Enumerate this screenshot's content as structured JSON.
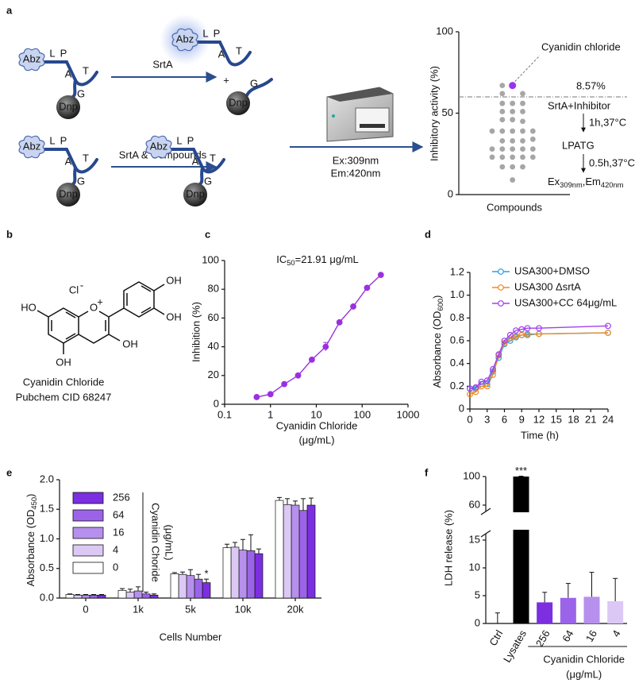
{
  "panel_labels": [
    "a",
    "b",
    "c",
    "d",
    "e",
    "f"
  ],
  "schematic": {
    "residues": [
      "L",
      "P",
      "A",
      "T",
      "G"
    ],
    "donor": "Abz",
    "quencher": "Dnp",
    "step1": "SrtA",
    "plus": "+",
    "step2": "SrtA & Compounds",
    "excitation": "Ex:309nm",
    "emission": "Em:420nm"
  },
  "structure": {
    "name": "Cyanidin Chloride",
    "identifier": "Pubchem CID 68247",
    "oxygen": "O",
    "oxygen_charge": "+",
    "counterion": "Cl",
    "counterion_charge": "-",
    "hydroxyls": [
      "HO",
      "OH",
      "OH",
      "OH",
      "OH"
    ]
  },
  "chart_data": [
    {
      "type": "scatter",
      "xlabel": "Compounds",
      "ylabel": "Inhibitory activity (%)",
      "xlim": [
        0,
        6
      ],
      "ylim": [
        0,
        100
      ],
      "yticks": [
        0,
        50,
        100
      ],
      "color": "#a6a6a6",
      "x": [
        1.8,
        1.8,
        1.8,
        2.35,
        2.35,
        2.35,
        2.35,
        2.35,
        2.35,
        2.35,
        2.35,
        2.35,
        2.35,
        2.9,
        2.9,
        2.9,
        2.9,
        2.9,
        2.9,
        2.9,
        2.9,
        2.9,
        3.45,
        3.45,
        3.45,
        3.45,
        3.45,
        3.45,
        3.45,
        3.45,
        3.45,
        4,
        4,
        4,
        4
      ],
      "y": [
        39,
        28,
        23,
        67,
        62,
        56,
        51,
        46,
        39,
        33,
        28,
        23,
        17,
        56,
        51,
        46,
        39,
        33,
        28,
        23,
        17,
        9,
        62,
        56,
        51,
        45,
        39,
        33,
        28,
        23,
        17,
        39,
        34,
        28,
        23
      ],
      "highlight": {
        "name": "Cyanidin chloride",
        "x": 2.9,
        "y": 67,
        "color": "#9933ee"
      },
      "threshold": 60,
      "threshold_label": "8.57%",
      "workflow": [
        "SrtA+Inhibitor",
        "1h,37°C",
        "LPATG",
        "0.5h,37°C"
      ],
      "readout": [
        "Ex",
        "309nm",
        ",Em",
        "420nm"
      ]
    },
    {
      "type": "line",
      "title": [
        "IC",
        "50",
        "=21.91 μg/mL"
      ],
      "xlabel": [
        "Cyanidin Chloride",
        "(μg/mL)"
      ],
      "ylabel": "Inhibition (%)",
      "log_x": true,
      "xlim": [
        0.1,
        1000
      ],
      "xticks": [
        0.1,
        1,
        10,
        100,
        1000
      ],
      "ylim": [
        0,
        100
      ],
      "yticks": [
        0,
        20,
        40,
        60,
        80,
        100
      ],
      "color": "#9b30e0",
      "x": [
        0.5,
        1,
        2,
        4,
        8,
        16,
        32,
        64,
        128,
        256
      ],
      "values": [
        5,
        7,
        14,
        20,
        31,
        40,
        57,
        68,
        81,
        90
      ],
      "errors": [
        0.5,
        0.5,
        0.5,
        0.8,
        1,
        3,
        1.2,
        1,
        1,
        1
      ]
    },
    {
      "type": "line",
      "xlabel": "Time (h)",
      "ylabel": [
        "Absorbance (OD",
        "600",
        ")"
      ],
      "x": [
        0,
        1,
        2,
        3,
        4,
        5,
        6,
        7,
        8,
        9,
        10,
        12,
        24
      ],
      "xlim": [
        0,
        24
      ],
      "xticks": [
        0,
        3,
        6,
        9,
        12,
        15,
        18,
        21,
        24
      ],
      "ylim": [
        0,
        1.2
      ],
      "yticks": [
        0,
        0.2,
        0.4,
        0.6,
        0.8,
        {
          "value": 1,
          "label": "1.0"
        },
        1.2
      ],
      "series": [
        {
          "name": "USA300+DMSO",
          "color": "#2a9fe0",
          "values": [
            0.18,
            0.18,
            0.22,
            0.22,
            0.33,
            0.45,
            0.57,
            0.6,
            0.63,
            0.65,
            0.65,
            0.66,
            0.67
          ]
        },
        {
          "name": "USA300 ΔsrtA",
          "color": "#f08a24",
          "values": [
            0.13,
            0.15,
            0.2,
            0.2,
            0.3,
            0.47,
            0.58,
            0.62,
            0.64,
            0.65,
            0.66,
            0.66,
            0.67
          ]
        },
        {
          "name": "USA300+CC 64μg/mL",
          "color": "#a040f0",
          "values": [
            0.18,
            0.19,
            0.24,
            0.25,
            0.35,
            0.48,
            0.6,
            0.65,
            0.69,
            0.7,
            0.71,
            0.71,
            0.73
          ]
        }
      ]
    },
    {
      "type": "bar",
      "xlabel": "Cells Number",
      "ylabel": [
        "Absorbance (OD",
        "450",
        ")"
      ],
      "categories": [
        "0",
        "1k",
        "5k",
        "10k",
        "20k"
      ],
      "ylim": [
        0,
        2
      ],
      "yticks": [
        {
          "value": 0,
          "label": "0.0"
        },
        0.5,
        {
          "value": 1,
          "label": "1.0"
        },
        1.5,
        {
          "value": 2,
          "label": "2.0"
        }
      ],
      "legend_title": [
        "Cyanidin Choride",
        "(μg/mL)"
      ],
      "series": [
        {
          "name": "256",
          "color": "#7b2fe0",
          "values": [
            0.05,
            0.05,
            0.26,
            0.75,
            1.57
          ],
          "errors": [
            0.01,
            0.02,
            0.06,
            0.08,
            0.12
          ]
        },
        {
          "name": "64",
          "color": "#9b64e8",
          "values": [
            0.05,
            0.07,
            0.32,
            0.8,
            1.48
          ],
          "errors": [
            0.01,
            0.03,
            0.08,
            0.27,
            0.2
          ]
        },
        {
          "name": "16",
          "color": "#b690ec",
          "values": [
            0.05,
            0.12,
            0.38,
            0.81,
            1.57
          ],
          "errors": [
            0.01,
            0.07,
            0.1,
            0.18,
            0.07
          ]
        },
        {
          "name": "4",
          "color": "#dcc8f5",
          "values": [
            0.05,
            0.1,
            0.4,
            0.86,
            1.58
          ],
          "errors": [
            0.01,
            0.05,
            0.04,
            0.08,
            0.1
          ]
        },
        {
          "name": "0",
          "color": "#ffffff",
          "values": [
            0.06,
            0.13,
            0.41,
            0.85,
            1.65
          ],
          "errors": [
            0.01,
            0.03,
            0.02,
            0.06,
            0.05
          ]
        }
      ],
      "annotations": [
        {
          "text": "*",
          "category": "5k",
          "series": "256"
        }
      ]
    },
    {
      "type": "bar",
      "ylabel": "LDH release (%)",
      "categories": [
        "Ctrl",
        "Lysates",
        "256",
        "64",
        "16",
        "4"
      ],
      "values": [
        0,
        100,
        3.8,
        4.6,
        4.8,
        4
      ],
      "errors": [
        1.9,
        0.5,
        1.8,
        2.6,
        4.4,
        4.1
      ],
      "colors": [
        "#000000",
        "#000000",
        "#7b2fe0",
        "#9b64e8",
        "#b690ec",
        "#dcc8f5"
      ],
      "ylim": [
        0,
        100
      ],
      "ybreak": [
        15,
        60
      ],
      "yticks": [
        0,
        5,
        10,
        15,
        60,
        100
      ],
      "group_label": [
        "Cyanidin Chloride",
        "(μg/mL)"
      ],
      "annotations": [
        {
          "text": "***",
          "category": "Lysates"
        }
      ]
    }
  ]
}
